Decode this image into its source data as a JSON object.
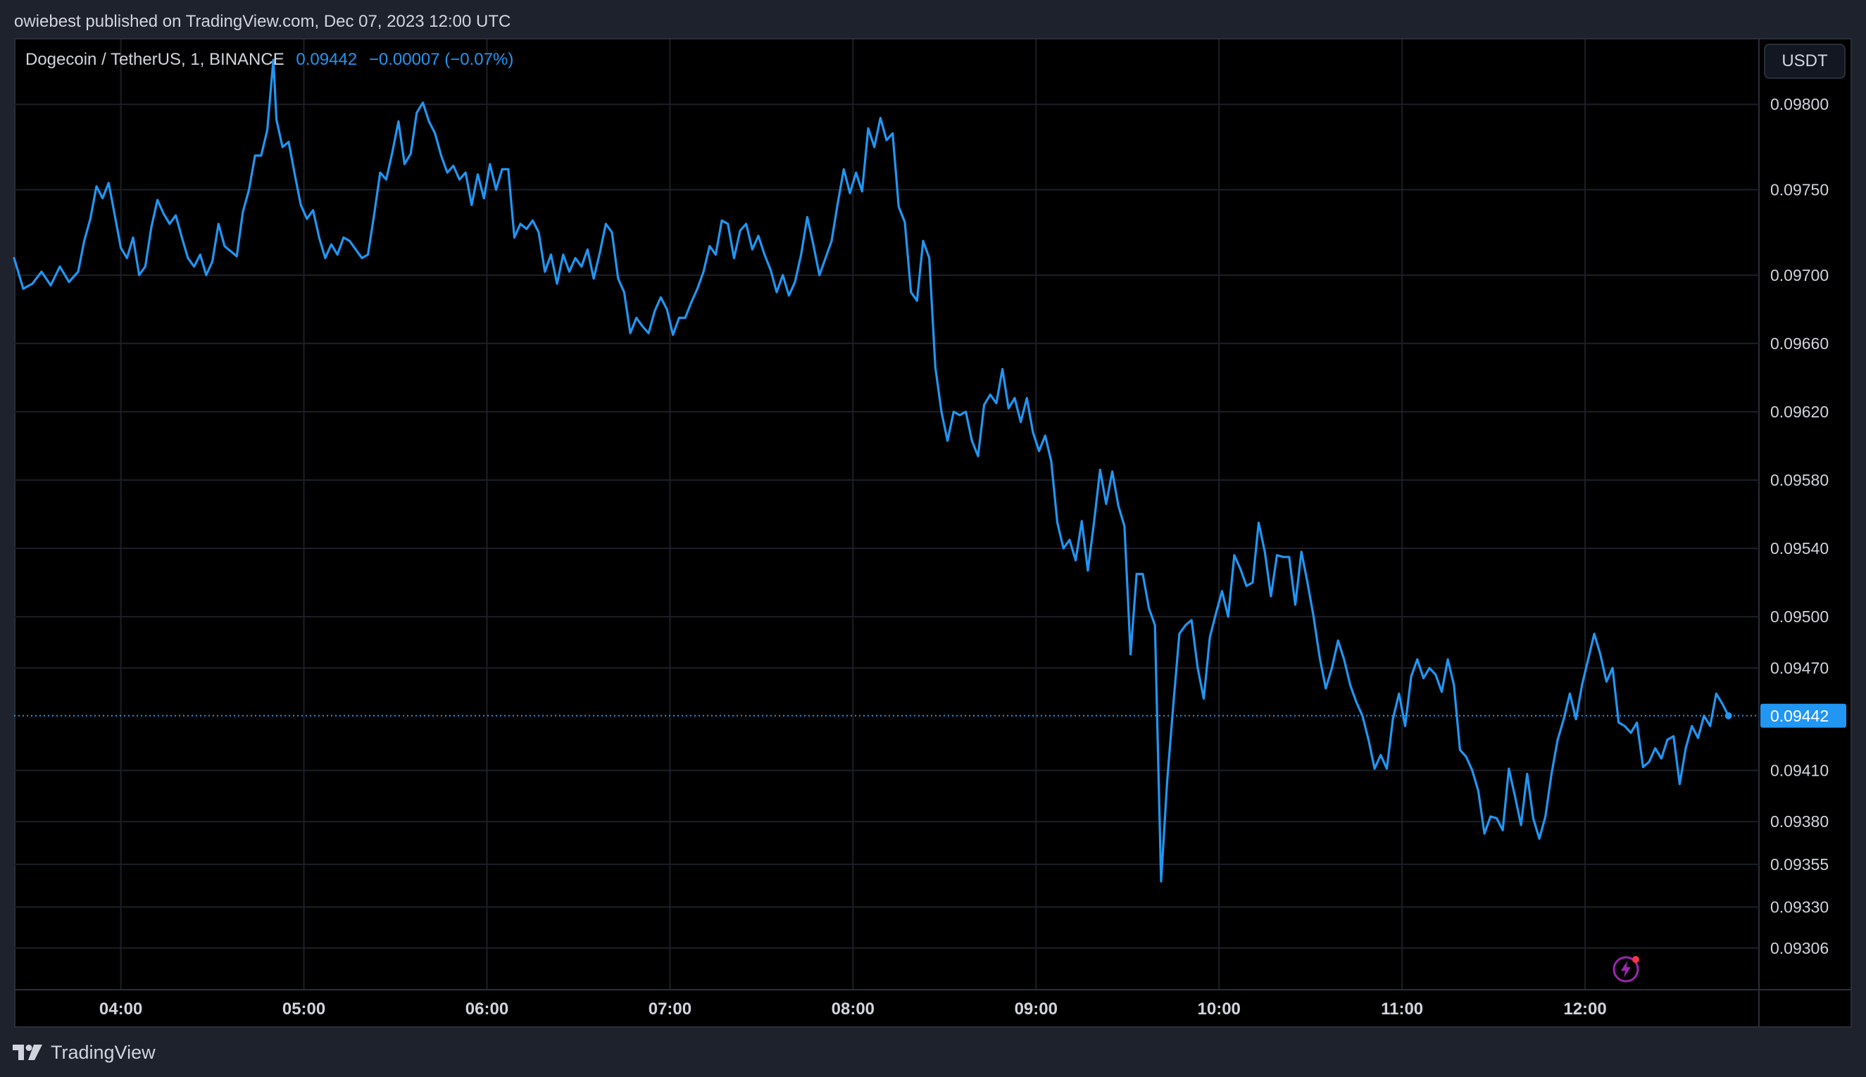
{
  "header": {
    "attribution": "owiebest published on TradingView.com, Dec 07, 2023 12:00 UTC"
  },
  "legend": {
    "symbol": "Dogecoin / TetherUS, 1, BINANCE",
    "last": "0.09442",
    "change": "−0.00007 (−0.07%)"
  },
  "currency": "USDT",
  "footer": {
    "brand": "TradingView"
  },
  "colors": {
    "line": "#2196f3",
    "background": "#000000",
    "grid": "#1c1f27",
    "text": "#d1d4dc"
  },
  "icons": [
    "tradingview-logo-icon",
    "lightning-icon"
  ],
  "chart_data": {
    "type": "line",
    "title": "",
    "xlabel": "",
    "ylabel": "",
    "x_ticks": [
      "04:00",
      "05:00",
      "06:00",
      "07:00",
      "08:00",
      "09:00",
      "10:00",
      "11:00",
      "12:00"
    ],
    "y_ticks": [
      "0.09800",
      "0.09750",
      "0.09700",
      "0.09660",
      "0.09620",
      "0.09580",
      "0.09540",
      "0.09500",
      "0.09470",
      "0.09442",
      "0.09410",
      "0.09380",
      "0.09355",
      "0.09330",
      "0.09306"
    ],
    "y_range": [
      0.09282,
      0.09838
    ],
    "x_range": [
      "03:25",
      "12:57"
    ],
    "last_price": 0.09442,
    "last_label": "0.09442",
    "grid": true,
    "series": [
      {
        "points": [
          [
            "03:25",
            0.0971
          ],
          [
            "03:28",
            0.09692
          ],
          [
            "03:31",
            0.09695
          ],
          [
            "03:34",
            0.09702
          ],
          [
            "03:37",
            0.09694
          ],
          [
            "03:40",
            0.09705
          ],
          [
            "03:43",
            0.09696
          ],
          [
            "03:46",
            0.09702
          ],
          [
            "03:48",
            0.0972
          ],
          [
            "03:50",
            0.09733
          ],
          [
            "03:52",
            0.09752
          ],
          [
            "03:54",
            0.09745
          ],
          [
            "03:56",
            0.09754
          ],
          [
            "03:58",
            0.09735
          ],
          [
            "04:00",
            0.09716
          ],
          [
            "04:02",
            0.0971
          ],
          [
            "04:04",
            0.09722
          ],
          [
            "04:06",
            0.097
          ],
          [
            "04:08",
            0.09705
          ],
          [
            "04:10",
            0.09728
          ],
          [
            "04:12",
            0.09744
          ],
          [
            "04:14",
            0.09736
          ],
          [
            "04:16",
            0.0973
          ],
          [
            "04:18",
            0.09735
          ],
          [
            "04:20",
            0.09722
          ],
          [
            "04:22",
            0.0971
          ],
          [
            "04:24",
            0.09705
          ],
          [
            "04:26",
            0.09712
          ],
          [
            "04:28",
            0.097
          ],
          [
            "04:30",
            0.09708
          ],
          [
            "04:32",
            0.0973
          ],
          [
            "04:34",
            0.09717
          ],
          [
            "04:36",
            0.09714
          ],
          [
            "04:38",
            0.09711
          ],
          [
            "04:40",
            0.09737
          ],
          [
            "04:42",
            0.0975
          ],
          [
            "04:44",
            0.0977
          ],
          [
            "04:46",
            0.0977
          ],
          [
            "04:48",
            0.09785
          ],
          [
            "04:50",
            0.09826
          ],
          [
            "04:51",
            0.09791
          ],
          [
            "04:53",
            0.09775
          ],
          [
            "04:55",
            0.09778
          ],
          [
            "04:57",
            0.09759
          ],
          [
            "04:59",
            0.09741
          ],
          [
            "05:01",
            0.09733
          ],
          [
            "05:03",
            0.09738
          ],
          [
            "05:05",
            0.09722
          ],
          [
            "05:07",
            0.0971
          ],
          [
            "05:09",
            0.09718
          ],
          [
            "05:11",
            0.09712
          ],
          [
            "05:13",
            0.09722
          ],
          [
            "05:15",
            0.0972
          ],
          [
            "05:17",
            0.09715
          ],
          [
            "05:19",
            0.0971
          ],
          [
            "05:21",
            0.09712
          ],
          [
            "05:23",
            0.09735
          ],
          [
            "05:25",
            0.0976
          ],
          [
            "05:27",
            0.09756
          ],
          [
            "05:29",
            0.09772
          ],
          [
            "05:31",
            0.0979
          ],
          [
            "05:33",
            0.09765
          ],
          [
            "05:35",
            0.09771
          ],
          [
            "05:37",
            0.09795
          ],
          [
            "05:39",
            0.09801
          ],
          [
            "05:41",
            0.0979
          ],
          [
            "05:43",
            0.09783
          ],
          [
            "05:45",
            0.0977
          ],
          [
            "05:47",
            0.0976
          ],
          [
            "05:49",
            0.09764
          ],
          [
            "05:51",
            0.09756
          ],
          [
            "05:53",
            0.0976
          ],
          [
            "05:55",
            0.09741
          ],
          [
            "05:57",
            0.09759
          ],
          [
            "05:59",
            0.09745
          ],
          [
            "06:01",
            0.09765
          ],
          [
            "06:03",
            0.0975
          ],
          [
            "06:05",
            0.09762
          ],
          [
            "06:07",
            0.09762
          ],
          [
            "06:09",
            0.09722
          ],
          [
            "06:11",
            0.0973
          ],
          [
            "06:13",
            0.09727
          ],
          [
            "06:15",
            0.09732
          ],
          [
            "06:17",
            0.09725
          ],
          [
            "06:19",
            0.09702
          ],
          [
            "06:21",
            0.09712
          ],
          [
            "06:23",
            0.09695
          ],
          [
            "06:25",
            0.09712
          ],
          [
            "06:27",
            0.09702
          ],
          [
            "06:29",
            0.0971
          ],
          [
            "06:31",
            0.09705
          ],
          [
            "06:33",
            0.09715
          ],
          [
            "06:35",
            0.09698
          ],
          [
            "06:37",
            0.09713
          ],
          [
            "06:39",
            0.0973
          ],
          [
            "06:41",
            0.09725
          ],
          [
            "06:43",
            0.09698
          ],
          [
            "06:45",
            0.0969
          ],
          [
            "06:47",
            0.09666
          ],
          [
            "06:49",
            0.09675
          ],
          [
            "06:51",
            0.0967
          ],
          [
            "06:53",
            0.09666
          ],
          [
            "06:55",
            0.09679
          ],
          [
            "06:57",
            0.09687
          ],
          [
            "06:59",
            0.0968
          ],
          [
            "07:01",
            0.09665
          ],
          [
            "07:03",
            0.09675
          ],
          [
            "07:05",
            0.09675
          ],
          [
            "07:07",
            0.09684
          ],
          [
            "07:09",
            0.09692
          ],
          [
            "07:11",
            0.09702
          ],
          [
            "07:13",
            0.09717
          ],
          [
            "07:15",
            0.09712
          ],
          [
            "07:17",
            0.09732
          ],
          [
            "07:19",
            0.0973
          ],
          [
            "07:21",
            0.0971
          ],
          [
            "07:23",
            0.09726
          ],
          [
            "07:25",
            0.0973
          ],
          [
            "07:27",
            0.09715
          ],
          [
            "07:29",
            0.09723
          ],
          [
            "07:31",
            0.09712
          ],
          [
            "07:33",
            0.09703
          ],
          [
            "07:35",
            0.0969
          ],
          [
            "07:37",
            0.097
          ],
          [
            "07:39",
            0.09688
          ],
          [
            "07:41",
            0.09696
          ],
          [
            "07:43",
            0.09712
          ],
          [
            "07:45",
            0.09734
          ],
          [
            "07:47",
            0.09718
          ],
          [
            "07:49",
            0.097
          ],
          [
            "07:51",
            0.0971
          ],
          [
            "07:53",
            0.0972
          ],
          [
            "07:55",
            0.09742
          ],
          [
            "07:57",
            0.09762
          ],
          [
            "07:59",
            0.09748
          ],
          [
            "08:01",
            0.0976
          ],
          [
            "08:03",
            0.09749
          ],
          [
            "08:05",
            0.09786
          ],
          [
            "08:07",
            0.09775
          ],
          [
            "08:09",
            0.09792
          ],
          [
            "08:11",
            0.09779
          ],
          [
            "08:13",
            0.09783
          ],
          [
            "08:15",
            0.0974
          ],
          [
            "08:17",
            0.09731
          ],
          [
            "08:19",
            0.0969
          ],
          [
            "08:21",
            0.09685
          ],
          [
            "08:23",
            0.0972
          ],
          [
            "08:25",
            0.0971
          ],
          [
            "08:27",
            0.09646
          ],
          [
            "08:29",
            0.0962
          ],
          [
            "08:31",
            0.09603
          ],
          [
            "08:33",
            0.0962
          ],
          [
            "08:35",
            0.09618
          ],
          [
            "08:37",
            0.0962
          ],
          [
            "08:39",
            0.09603
          ],
          [
            "08:41",
            0.09594
          ],
          [
            "08:43",
            0.09624
          ],
          [
            "08:45",
            0.0963
          ],
          [
            "08:47",
            0.09625
          ],
          [
            "08:49",
            0.09645
          ],
          [
            "08:51",
            0.09622
          ],
          [
            "08:53",
            0.09628
          ],
          [
            "08:55",
            0.09614
          ],
          [
            "08:57",
            0.09628
          ],
          [
            "08:59",
            0.09608
          ],
          [
            "09:01",
            0.09597
          ],
          [
            "09:03",
            0.09606
          ],
          [
            "09:05",
            0.09591
          ],
          [
            "09:07",
            0.09555
          ],
          [
            "09:09",
            0.0954
          ],
          [
            "09:11",
            0.09545
          ],
          [
            "09:13",
            0.09533
          ],
          [
            "09:15",
            0.09556
          ],
          [
            "09:17",
            0.09527
          ],
          [
            "09:19",
            0.09555
          ],
          [
            "09:21",
            0.09586
          ],
          [
            "09:23",
            0.09566
          ],
          [
            "09:25",
            0.09585
          ],
          [
            "09:27",
            0.09565
          ],
          [
            "09:29",
            0.09553
          ],
          [
            "09:31",
            0.09478
          ],
          [
            "09:33",
            0.09525
          ],
          [
            "09:35",
            0.09525
          ],
          [
            "09:37",
            0.09505
          ],
          [
            "09:39",
            0.09495
          ],
          [
            "09:41",
            0.09345
          ],
          [
            "09:43",
            0.09404
          ],
          [
            "09:45",
            0.09448
          ],
          [
            "09:47",
            0.0949
          ],
          [
            "09:49",
            0.09495
          ],
          [
            "09:51",
            0.09498
          ],
          [
            "09:53",
            0.0947
          ],
          [
            "09:55",
            0.09452
          ],
          [
            "09:57",
            0.09488
          ],
          [
            "09:59",
            0.09502
          ],
          [
            "10:01",
            0.09515
          ],
          [
            "10:03",
            0.095
          ],
          [
            "10:05",
            0.09536
          ],
          [
            "10:07",
            0.09528
          ],
          [
            "10:09",
            0.09518
          ],
          [
            "10:11",
            0.0952
          ],
          [
            "10:13",
            0.09555
          ],
          [
            "10:15",
            0.09538
          ],
          [
            "10:17",
            0.09512
          ],
          [
            "10:19",
            0.09536
          ],
          [
            "10:21",
            0.09535
          ],
          [
            "10:23",
            0.09535
          ],
          [
            "10:25",
            0.09507
          ],
          [
            "10:27",
            0.09538
          ],
          [
            "10:29",
            0.0952
          ],
          [
            "10:31",
            0.095
          ],
          [
            "10:33",
            0.09476
          ],
          [
            "10:35",
            0.09458
          ],
          [
            "10:37",
            0.0947
          ],
          [
            "10:39",
            0.09486
          ],
          [
            "10:41",
            0.09475
          ],
          [
            "10:43",
            0.0946
          ],
          [
            "10:45",
            0.0945
          ],
          [
            "10:47",
            0.09442
          ],
          [
            "10:49",
            0.09428
          ],
          [
            "10:51",
            0.09411
          ],
          [
            "10:53",
            0.09419
          ],
          [
            "10:55",
            0.09411
          ],
          [
            "10:57",
            0.0944
          ],
          [
            "10:59",
            0.09455
          ],
          [
            "11:01",
            0.09436
          ],
          [
            "11:03",
            0.09465
          ],
          [
            "11:05",
            0.09475
          ],
          [
            "11:07",
            0.09464
          ],
          [
            "11:09",
            0.0947
          ],
          [
            "11:11",
            0.09466
          ],
          [
            "11:13",
            0.09456
          ],
          [
            "11:15",
            0.09475
          ],
          [
            "11:17",
            0.0946
          ],
          [
            "11:19",
            0.09422
          ],
          [
            "11:21",
            0.09418
          ],
          [
            "11:23",
            0.0941
          ],
          [
            "11:25",
            0.09398
          ],
          [
            "11:27",
            0.09373
          ],
          [
            "11:29",
            0.09383
          ],
          [
            "11:31",
            0.09382
          ],
          [
            "11:33",
            0.09375
          ],
          [
            "11:35",
            0.09411
          ],
          [
            "11:37",
            0.09395
          ],
          [
            "11:39",
            0.09378
          ],
          [
            "11:41",
            0.09408
          ],
          [
            "11:43",
            0.09382
          ],
          [
            "11:45",
            0.0937
          ],
          [
            "11:47",
            0.09383
          ],
          [
            "11:49",
            0.09408
          ],
          [
            "11:51",
            0.09428
          ],
          [
            "11:53",
            0.0944
          ],
          [
            "11:55",
            0.09455
          ],
          [
            "11:57",
            0.0944
          ],
          [
            "11:59",
            0.0946
          ],
          [
            "12:01",
            0.09475
          ],
          [
            "12:03",
            0.0949
          ],
          [
            "12:05",
            0.09478
          ],
          [
            "12:07",
            0.09462
          ],
          [
            "12:09",
            0.0947
          ],
          [
            "12:11",
            0.09438
          ],
          [
            "12:13",
            0.09436
          ],
          [
            "12:15",
            0.09432
          ],
          [
            "12:17",
            0.09438
          ],
          [
            "12:19",
            0.09412
          ],
          [
            "12:21",
            0.09415
          ],
          [
            "12:23",
            0.09423
          ],
          [
            "12:25",
            0.09417
          ],
          [
            "12:27",
            0.09428
          ],
          [
            "12:29",
            0.0943
          ],
          [
            "12:31",
            0.09402
          ],
          [
            "12:33",
            0.09423
          ],
          [
            "12:35",
            0.09436
          ],
          [
            "12:37",
            0.09429
          ],
          [
            "12:39",
            0.09442
          ],
          [
            "12:41",
            0.09436
          ],
          [
            "12:43",
            0.09455
          ],
          [
            "12:45",
            0.09449
          ],
          [
            "12:47",
            0.09442
          ]
        ]
      }
    ]
  }
}
